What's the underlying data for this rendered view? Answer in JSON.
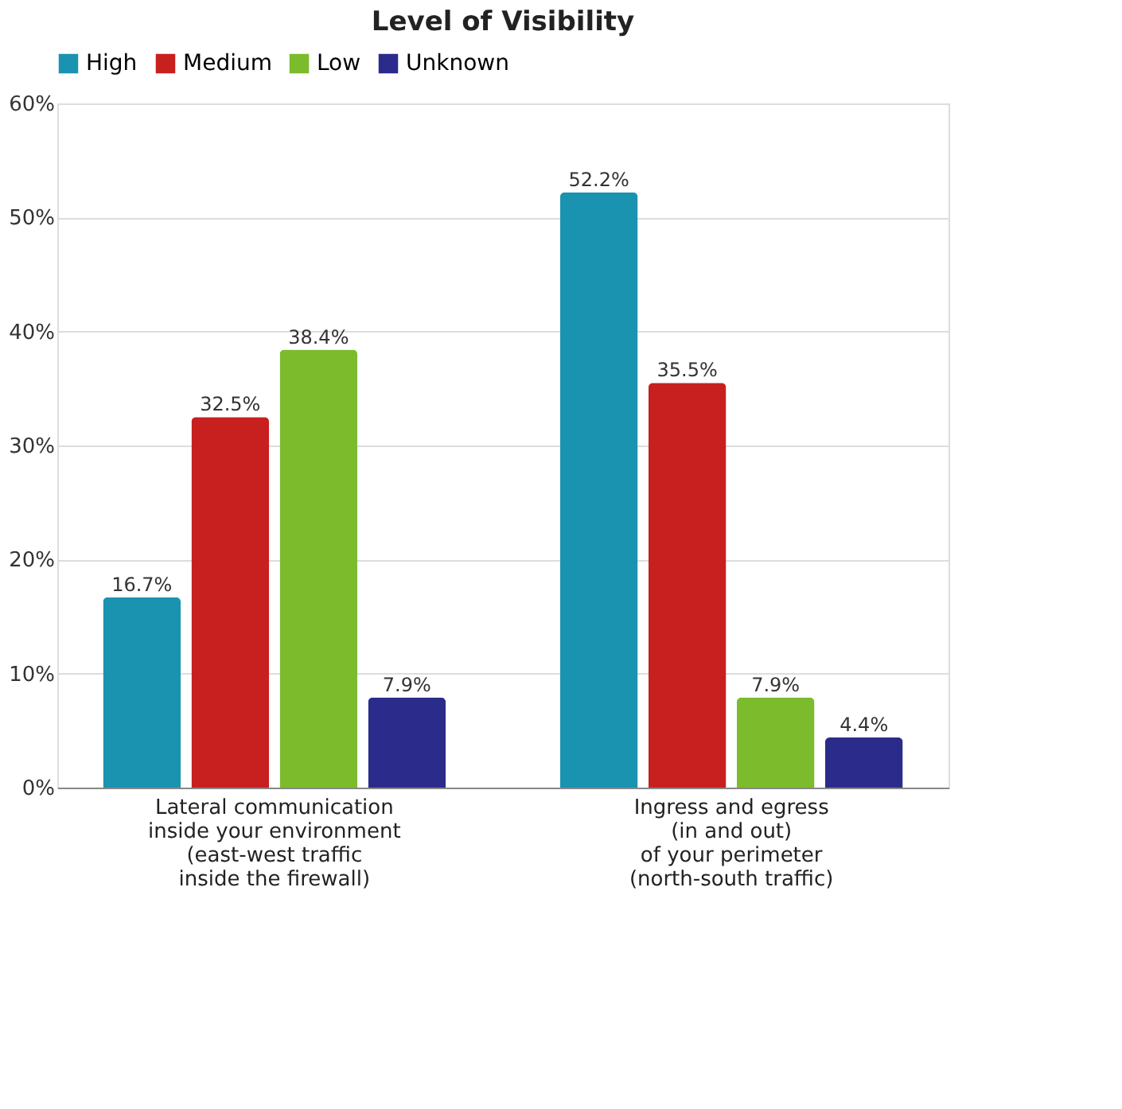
{
  "chart_data": {
    "type": "bar",
    "title": "Level of Visibility",
    "categories": [
      "Lateral communication\ninside your environment\n(east-west traffic\ninside the firewall)",
      "Ingress and egress\n(in and out)\nof your perimeter\n(north-south traffic)"
    ],
    "series": [
      {
        "name": "High",
        "color": "#1a93b0",
        "values": [
          16.7,
          52.2
        ],
        "value_labels": [
          "16.7%",
          "52.2%"
        ]
      },
      {
        "name": "Medium",
        "color": "#c8201f",
        "values": [
          32.5,
          35.5
        ],
        "value_labels": [
          "32.5%",
          "35.5%"
        ]
      },
      {
        "name": "Low",
        "color": "#7cbb2b",
        "values": [
          38.4,
          7.9
        ],
        "value_labels": [
          "38.4%",
          "7.9%"
        ]
      },
      {
        "name": "Unknown",
        "color": "#2b2b8c",
        "values": [
          7.9,
          4.4
        ],
        "value_labels": [
          "7.9%",
          "4.4%"
        ]
      }
    ],
    "ylim": [
      0,
      60
    ],
    "yticks": [
      {
        "value": 0,
        "label": "0%"
      },
      {
        "value": 10,
        "label": "10%"
      },
      {
        "value": 20,
        "label": "20%"
      },
      {
        "value": 30,
        "label": "30%"
      },
      {
        "value": 40,
        "label": "40%"
      },
      {
        "value": 50,
        "label": "50%"
      },
      {
        "value": 60,
        "label": "60%"
      }
    ],
    "grid": "y",
    "legend": "top"
  }
}
